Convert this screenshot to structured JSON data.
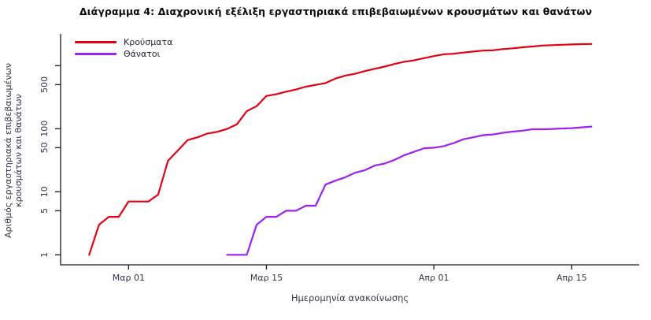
{
  "title": "Διάγραμμα 4: Διαχρονική εξέλιξη εργαστηριακά επιβεβαιωμένων κρουσμάτων και θανάτων",
  "chart_data": {
    "type": "line",
    "title": "Διάγραμμα 4: Διαχρονική εξέλιξη εργαστηριακά επιβεβαιωμένων κρουσμάτων και θανάτων",
    "xlabel": "Ημερομηνία ανακοίνωσης",
    "ylabel": "Αριθμός εργαστηριακά επιβεβαιωμένων κρουσμάτων και θανάτων",
    "yscale": "log",
    "ylim": [
      1,
      3000
    ],
    "grid": false,
    "legend_position": "top-left",
    "x_unit": "days since Feb 26",
    "x_ticks": [
      {
        "label": "Μαρ 01",
        "day": 4
      },
      {
        "label": "Μαρ 15",
        "day": 18
      },
      {
        "label": "Απρ 01",
        "day": 35
      },
      {
        "label": "Απρ 15",
        "day": 49
      }
    ],
    "y_ticks": [
      {
        "value": 1,
        "label": "1"
      },
      {
        "value": 5,
        "label": "5"
      },
      {
        "value": 10,
        "label": "10"
      },
      {
        "value": 50,
        "label": "50"
      },
      {
        "value": 100,
        "label": "100"
      },
      {
        "value": 500,
        "label": "500"
      },
      {
        "value": 1000,
        "label": ""
      }
    ],
    "series": [
      {
        "key": "cases",
        "name": "Κρούσματα",
        "color": "#e4000f",
        "start_date": "Φεβ 26",
        "start_day": 0,
        "values": [
          1,
          3,
          4,
          4,
          7,
          7,
          7,
          9,
          31,
          45,
          66,
          73,
          84,
          89,
          99,
          117,
          190,
          228,
          331,
          352,
          387,
          418,
          464,
          495,
          530,
          624,
          695,
          743,
          821,
          892,
          966,
          1061,
          1156,
          1212,
          1314,
          1415,
          1514,
          1544,
          1613,
          1673,
          1735,
          1755,
          1832,
          1884,
          1955,
          2011,
          2081,
          2114,
          2145,
          2170,
          2192,
          2207
        ]
      },
      {
        "key": "deaths",
        "name": "Θάνατοι",
        "color": "#a020f0",
        "start_date": "Μαρ 11",
        "start_day": 14,
        "values": [
          1,
          1,
          1,
          3,
          4,
          4,
          5,
          5,
          6,
          6,
          13,
          15,
          17,
          20,
          22,
          26,
          28,
          32,
          38,
          43,
          49,
          50,
          53,
          59,
          68,
          73,
          79,
          81,
          86,
          90,
          93,
          98,
          98,
          99,
          101,
          102,
          105,
          108
        ]
      }
    ]
  }
}
